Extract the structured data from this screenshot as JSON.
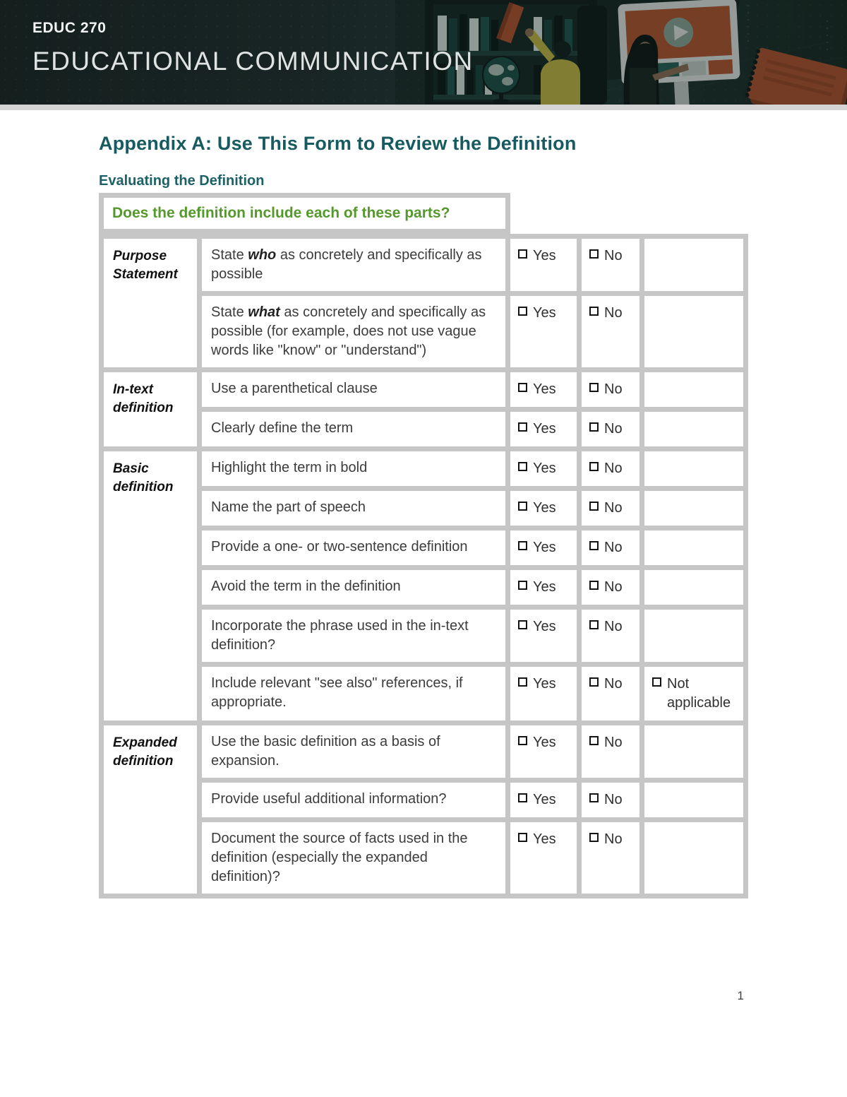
{
  "banner": {
    "course_code": "EDUC 270",
    "course_title": "EDUCATIONAL COMMUNICATION",
    "background_color": "#182524",
    "strip_color": "#d4d4d4",
    "illustration": {
      "elements": [
        "bookshelf with books",
        "orange book being taken",
        "globe",
        "person in yellow reaching",
        "tablet",
        "video player with play button",
        "woman pointing",
        "orange spiral notebook"
      ],
      "accent_orange": "#b95430",
      "accent_yellow": "#c8ba45",
      "accent_teal": "#27605a",
      "frame_white": "#e7ebe7"
    }
  },
  "document": {
    "title": "Appendix A: Use This Form to Review the Definition",
    "title_color": "#175a60",
    "section_heading": "Evaluating the Definition",
    "page_number": "1"
  },
  "table": {
    "header": "Does the definition include each of these parts?",
    "header_color": "#55982d",
    "border_color": "#c6c6c6",
    "categories": [
      {
        "label": "Purpose Statement",
        "rows": 2
      },
      {
        "label": "In-text definition",
        "rows": 2
      },
      {
        "label": "Basic definition",
        "rows": 6
      },
      {
        "label": "Expanded definition",
        "rows": 3
      }
    ],
    "rows": [
      {
        "segments": [
          {
            "t": "State "
          },
          {
            "t": "who",
            "em": true
          },
          {
            "t": " as concretely and specifically as possible"
          }
        ],
        "options": [
          "Yes",
          "No"
        ]
      },
      {
        "segments": [
          {
            "t": "State "
          },
          {
            "t": "what",
            "em": true
          },
          {
            "t": " as concretely and specifically as possible (for example, does not use vague words like \"know\" or \"understand\")"
          }
        ],
        "options": [
          "Yes",
          "No"
        ]
      },
      {
        "segments": [
          {
            "t": "Use a parenthetical clause"
          }
        ],
        "options": [
          "Yes",
          "No"
        ]
      },
      {
        "segments": [
          {
            "t": "Clearly define the term"
          }
        ],
        "options": [
          "Yes",
          "No"
        ]
      },
      {
        "segments": [
          {
            "t": "Highlight the term in bold"
          }
        ],
        "options": [
          "Yes",
          "No"
        ]
      },
      {
        "segments": [
          {
            "t": "Name the part of speech"
          }
        ],
        "options": [
          "Yes",
          "No"
        ]
      },
      {
        "segments": [
          {
            "t": "Provide a one- or two-sentence definition"
          }
        ],
        "options": [
          "Yes",
          "No"
        ]
      },
      {
        "segments": [
          {
            "t": "Avoid the term in the definition"
          }
        ],
        "options": [
          "Yes",
          "No"
        ]
      },
      {
        "segments": [
          {
            "t": "Incorporate the phrase used in the in-text definition?"
          }
        ],
        "options": [
          "Yes",
          "No"
        ]
      },
      {
        "segments": [
          {
            "t": "Include relevant \"see also\" references, if appropriate."
          }
        ],
        "options": [
          "Yes",
          "No",
          "Not applicable"
        ]
      },
      {
        "segments": [
          {
            "t": "Use the basic definition as a basis of expansion."
          }
        ],
        "options": [
          "Yes",
          "No"
        ]
      },
      {
        "segments": [
          {
            "t": "Provide useful additional information?"
          }
        ],
        "options": [
          "Yes",
          "No"
        ]
      },
      {
        "segments": [
          {
            "t": "Document the source of facts used in the definition (especially the expanded definition)?"
          }
        ],
        "options": [
          "Yes",
          "No"
        ]
      }
    ]
  }
}
